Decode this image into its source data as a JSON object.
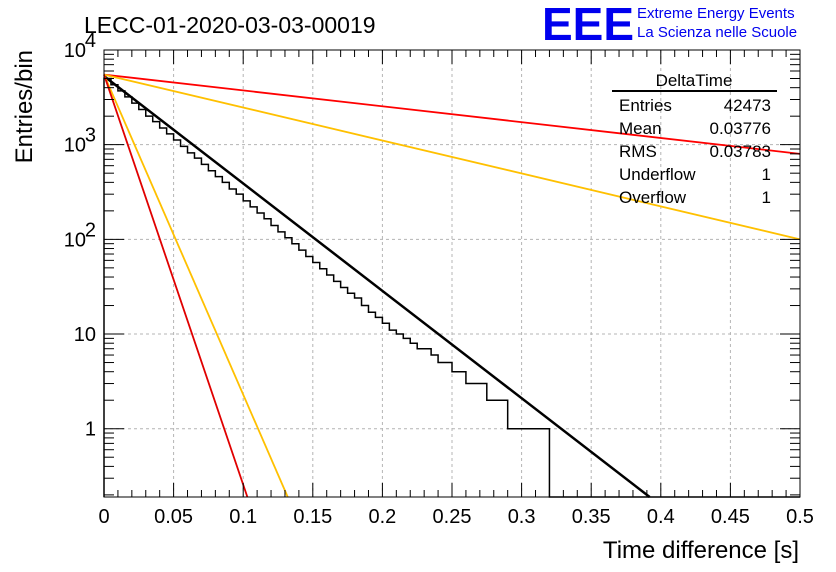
{
  "title": "LECC-01-2020-03-03-00019",
  "logo": {
    "text": "EEE",
    "line1": "Extreme Energy Events",
    "line2": "La Scienza nelle Scuole"
  },
  "stats_box": {
    "name": "DeltaTime",
    "rows": [
      {
        "label": "Entries",
        "value": "42473"
      },
      {
        "label": "Mean",
        "value": "0.03776"
      },
      {
        "label": "RMS",
        "value": "0.03783"
      },
      {
        "label": "Underflow",
        "value": "1"
      },
      {
        "label": "Overflow",
        "value": "1"
      }
    ]
  },
  "chart_data": {
    "type": "line",
    "xlabel": "Time difference [s]",
    "ylabel": "Entries/bin",
    "xlim": [
      0,
      0.5
    ],
    "ylim": [
      0.19,
      10000
    ],
    "yscale": "log",
    "grid": true,
    "legend": "top-right",
    "x_ticks": [
      "0",
      "0.05",
      "0.1",
      "0.15",
      "0.2",
      "0.25",
      "0.3",
      "0.35",
      "0.4",
      "0.45",
      "0.5"
    ],
    "y_ticks": [
      {
        "value": 1,
        "base": "1",
        "exp": ""
      },
      {
        "value": 10,
        "base": "10",
        "exp": ""
      },
      {
        "value": 100,
        "base": "10",
        "exp": "2"
      },
      {
        "value": 1000,
        "base": "10",
        "exp": "3"
      },
      {
        "value": 10000,
        "base": "10",
        "exp": "4"
      }
    ],
    "histogram": {
      "bin_width": 0.005,
      "color": "#000000",
      "counts": [
        5000,
        4300,
        3700,
        3200,
        2750,
        2350,
        2000,
        1750,
        1500,
        1300,
        1120,
        960,
        820,
        720,
        620,
        530,
        460,
        400,
        340,
        300,
        255,
        220,
        190,
        165,
        140,
        120,
        104,
        90,
        77,
        66,
        57,
        49,
        42,
        36,
        31,
        27,
        24,
        20,
        17,
        15,
        13,
        11,
        10,
        9,
        8,
        7,
        7,
        6,
        5,
        5,
        4,
        4,
        3,
        3,
        3,
        2,
        2,
        2,
        1,
        1,
        1,
        1,
        1,
        1,
        0,
        0,
        0,
        0,
        0,
        0,
        0,
        0,
        0,
        0,
        0,
        0,
        0,
        0,
        0,
        0,
        0,
        0,
        0,
        0,
        0,
        0,
        0,
        0,
        0,
        0,
        0,
        0,
        0,
        0,
        0,
        0,
        0,
        0,
        0,
        0
      ]
    },
    "series": [
      {
        "color": "#000000",
        "x": [
          0,
          0.392
        ],
        "y": [
          5300,
          0.19
        ]
      },
      {
        "color": "#ff0000",
        "x": [
          0,
          0.5
        ],
        "y": [
          5500,
          800
        ]
      },
      {
        "color": "#ffc000",
        "x": [
          0,
          0.5
        ],
        "y": [
          5500,
          100
        ]
      },
      {
        "color": "#ffc000",
        "x": [
          0,
          0.132
        ],
        "y": [
          5500,
          0.19
        ]
      },
      {
        "color": "#e00000",
        "x": [
          0,
          0.103
        ],
        "y": [
          5500,
          0.19
        ]
      }
    ]
  }
}
